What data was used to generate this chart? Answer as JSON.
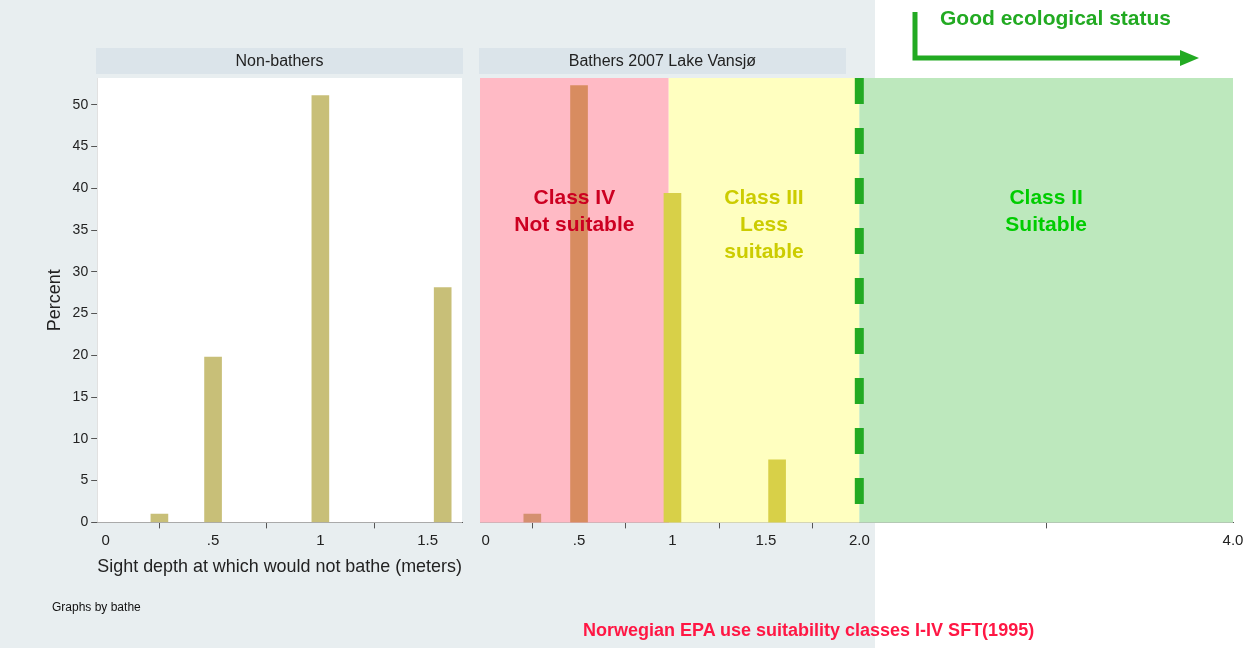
{
  "chart_data": [
    {
      "type": "bar",
      "title": "Non-bathers",
      "xlabel": "Sight depth at which would not bathe (meters)",
      "ylabel": "Percent",
      "x": [
        0.25,
        0.5,
        1.0,
        1.57
      ],
      "series": [
        {
          "color": "#c8bf78",
          "values": [
            1.0,
            19.8,
            51.1,
            28.1
          ]
        }
      ],
      "xlim": [
        -0.04,
        1.66
      ],
      "xticks": [
        0,
        {
          "value": 0.5,
          "label": ".5"
        },
        1,
        1.5
      ],
      "ylim": [
        0,
        53.2
      ],
      "yticks": [
        0,
        5,
        10,
        15,
        20,
        25,
        30,
        35,
        40,
        45,
        50
      ],
      "annotations": [
        "Graphs by bathe"
      ]
    },
    {
      "type": "bar",
      "title": "Bathers 2007 Lake Vansjø",
      "x": [
        0.25,
        0.5,
        1.0,
        1.56
      ],
      "series": [
        {
          "colors": [
            "#d49070",
            "#d88c60",
            "#d8d048",
            "#d8d048"
          ],
          "values": [
            1.0,
            52.3,
            39.4,
            7.5
          ]
        }
      ],
      "xlim": [
        -0.03,
        4.0
      ],
      "xticks": [
        0,
        {
          "value": 0.5,
          "label": ".5"
        },
        1,
        1.5,
        {
          "value": 2,
          "label": "2.0"
        },
        {
          "value": 4,
          "label": "4.0"
        }
      ],
      "ylim": [
        0,
        53.2
      ],
      "yticks": [
        0,
        5,
        10,
        15,
        20,
        25,
        30,
        35,
        40,
        45,
        50
      ],
      "tick_labels": "x",
      "bands": [
        {
          "axis": "x",
          "from": -0.03,
          "to": 0.98,
          "label": "Class IV\nNot suitable",
          "color": "#ffbac5"
        },
        {
          "axis": "x",
          "from": 0.98,
          "to": 2.0,
          "label": "Class III\nLess\nsuitable",
          "color": "#ffffc0"
        },
        {
          "axis": "x",
          "from": 2.0,
          "to": 4.0,
          "label": "Class II\nSuitable",
          "color": "#bde8bd"
        }
      ],
      "ref_lines": [
        {
          "axis": "x",
          "value": 2.0,
          "color": "#22aa22",
          "line_style": "dashed"
        }
      ],
      "annotations": [
        "Good ecological status",
        "Norwegian EPA use suitability classes I-IV SFT(1995)"
      ]
    }
  ]
}
